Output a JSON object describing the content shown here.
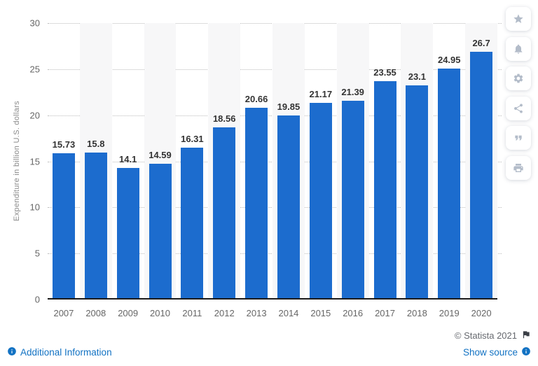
{
  "chart_data": {
    "type": "bar",
    "categories": [
      "2007",
      "2008",
      "2009",
      "2010",
      "2011",
      "2012",
      "2013",
      "2014",
      "2015",
      "2016",
      "2017",
      "2018",
      "2019",
      "2020"
    ],
    "values": [
      15.73,
      15.8,
      14.1,
      14.59,
      16.31,
      18.56,
      20.66,
      19.85,
      21.17,
      21.39,
      23.55,
      23.1,
      24.95,
      26.7
    ],
    "title": "",
    "xlabel": "",
    "ylabel": "Expenditure in billion U.S. dollars",
    "ylim": [
      0,
      30
    ],
    "yticks": [
      0,
      5,
      10,
      15,
      20,
      25,
      30
    ],
    "grid": "horizontal dotted",
    "legend": "none",
    "striped_columns": "every second year column shaded"
  },
  "sidebar": {
    "icons": [
      "star-icon",
      "bell-icon",
      "gear-icon",
      "share-icon",
      "quote-icon",
      "print-icon"
    ]
  },
  "footer": {
    "additional_information": "Additional Information",
    "show_source": "Show source",
    "copyright": "© Statista 2021"
  },
  "colors": {
    "bar": "#1c6cce",
    "link": "#1272c3",
    "stripe": "#f7f7f8",
    "grid": "#bbbbbb",
    "axis": "#1a1a1a",
    "value_label": "#333333",
    "tick_label": "#666666",
    "axis_title": "#8b8b8b",
    "icon": "#b3bcc9"
  }
}
